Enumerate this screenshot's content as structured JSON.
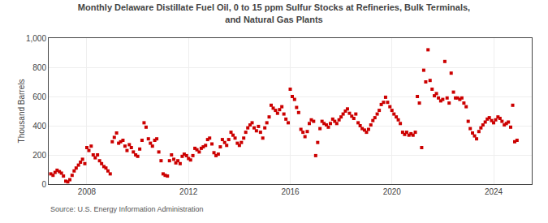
{
  "chart_data": {
    "type": "scatter",
    "title": "Monthly Delaware Distillate Fuel Oil, 0 to 15 ppm Sulfur Stocks at Refineries, Bulk Terminals,\nand Natural Gas Plants",
    "ylabel": "Thousand Barrels",
    "annotations": [
      "Source: U.S. Energy Information Administration"
    ],
    "color": "#cc0000",
    "marker": "square",
    "grid": true,
    "xlim": [
      2006.5,
      2025.5
    ],
    "xticks": [
      2008,
      2012,
      2016,
      2020,
      2024
    ],
    "ylim": [
      0,
      1000
    ],
    "yticks": [
      0,
      200,
      400,
      600,
      800,
      {
        "value": 1000,
        "label": "1,000"
      }
    ],
    "x": [
      2006.58,
      2006.67,
      2006.75,
      2006.83,
      2006.92,
      2007.0,
      2007.08,
      2007.17,
      2007.25,
      2007.33,
      2007.42,
      2007.5,
      2007.58,
      2007.67,
      2007.75,
      2007.83,
      2007.92,
      2008.0,
      2008.08,
      2008.17,
      2008.25,
      2008.33,
      2008.42,
      2008.5,
      2008.58,
      2008.67,
      2008.75,
      2008.83,
      2008.92,
      2009.0,
      2009.08,
      2009.17,
      2009.25,
      2009.33,
      2009.42,
      2009.5,
      2009.58,
      2009.67,
      2009.75,
      2009.83,
      2009.92,
      2010.0,
      2010.08,
      2010.17,
      2010.25,
      2010.33,
      2010.42,
      2010.5,
      2010.58,
      2010.67,
      2010.75,
      2010.83,
      2010.92,
      2011.0,
      2011.08,
      2011.17,
      2011.25,
      2011.33,
      2011.42,
      2011.5,
      2011.58,
      2011.67,
      2011.75,
      2011.83,
      2011.92,
      2012.0,
      2012.08,
      2012.17,
      2012.25,
      2012.33,
      2012.42,
      2012.5,
      2012.58,
      2012.67,
      2012.75,
      2012.83,
      2012.92,
      2013.0,
      2013.08,
      2013.17,
      2013.25,
      2013.33,
      2013.42,
      2013.5,
      2013.58,
      2013.67,
      2013.75,
      2013.83,
      2013.92,
      2014.0,
      2014.08,
      2014.17,
      2014.25,
      2014.33,
      2014.42,
      2014.5,
      2014.58,
      2014.67,
      2014.75,
      2014.83,
      2014.92,
      2015.0,
      2015.08,
      2015.17,
      2015.25,
      2015.33,
      2015.42,
      2015.5,
      2015.58,
      2015.67,
      2015.75,
      2015.83,
      2015.92,
      2016.0,
      2016.08,
      2016.17,
      2016.25,
      2016.33,
      2016.42,
      2016.5,
      2016.58,
      2016.67,
      2016.75,
      2016.83,
      2016.92,
      2017.0,
      2017.08,
      2017.17,
      2017.25,
      2017.33,
      2017.42,
      2017.5,
      2017.58,
      2017.67,
      2017.75,
      2017.83,
      2017.92,
      2018.0,
      2018.08,
      2018.17,
      2018.25,
      2018.33,
      2018.42,
      2018.5,
      2018.58,
      2018.67,
      2018.75,
      2018.83,
      2018.92,
      2019.0,
      2019.08,
      2019.17,
      2019.25,
      2019.33,
      2019.42,
      2019.5,
      2019.58,
      2019.67,
      2019.75,
      2019.83,
      2019.92,
      2020.0,
      2020.08,
      2020.17,
      2020.25,
      2020.33,
      2020.42,
      2020.5,
      2020.58,
      2020.67,
      2020.75,
      2020.83,
      2020.92,
      2021.0,
      2021.08,
      2021.17,
      2021.25,
      2021.33,
      2021.42,
      2021.5,
      2021.58,
      2021.67,
      2021.75,
      2021.83,
      2021.92,
      2022.0,
      2022.08,
      2022.17,
      2022.25,
      2022.33,
      2022.42,
      2022.5,
      2022.58,
      2022.67,
      2022.75,
      2022.83,
      2022.92,
      2023.0,
      2023.08,
      2023.17,
      2023.25,
      2023.33,
      2023.42,
      2023.5,
      2023.58,
      2023.67,
      2023.75,
      2023.83,
      2023.92,
      2024.0,
      2024.08,
      2024.17,
      2024.25,
      2024.33,
      2024.42,
      2024.5,
      2024.58,
      2024.67,
      2024.75,
      2024.83,
      2024.92
    ],
    "values": [
      70,
      60,
      80,
      95,
      85,
      75,
      55,
      20,
      15,
      30,
      60,
      90,
      110,
      130,
      150,
      170,
      140,
      250,
      230,
      260,
      200,
      180,
      200,
      160,
      140,
      120,
      110,
      90,
      70,
      290,
      320,
      350,
      280,
      290,
      300,
      260,
      230,
      270,
      250,
      220,
      200,
      190,
      240,
      300,
      420,
      390,
      310,
      280,
      260,
      300,
      310,
      220,
      160,
      70,
      60,
      55,
      160,
      200,
      170,
      145,
      160,
      140,
      190,
      205,
      195,
      175,
      165,
      195,
      245,
      235,
      220,
      245,
      255,
      265,
      305,
      315,
      275,
      215,
      195,
      205,
      255,
      305,
      285,
      265,
      305,
      355,
      335,
      315,
      280,
      265,
      285,
      315,
      355,
      385,
      405,
      420,
      385,
      365,
      395,
      355,
      315,
      385,
      420,
      460,
      540,
      520,
      505,
      485,
      510,
      530,
      480,
      445,
      420,
      650,
      600,
      580,
      525,
      490,
      375,
      355,
      325,
      360,
      415,
      440,
      430,
      195,
      285,
      380,
      430,
      415,
      405,
      390,
      415,
      445,
      430,
      415,
      440,
      460,
      480,
      500,
      515,
      485,
      465,
      450,
      480,
      420,
      400,
      380,
      370,
      355,
      375,
      405,
      435,
      455,
      480,
      505,
      545,
      560,
      595,
      560,
      530,
      505,
      480,
      460,
      440,
      415,
      355,
      340,
      355,
      335,
      345,
      335,
      355,
      600,
      555,
      250,
      780,
      700,
      920,
      710,
      650,
      605,
      620,
      590,
      570,
      580,
      840,
      590,
      555,
      760,
      630,
      590,
      590,
      580,
      590,
      555,
      530,
      430,
      380,
      350,
      330,
      310,
      360,
      385,
      405,
      425,
      445,
      455,
      435,
      420,
      440,
      460,
      450,
      430,
      405,
      415,
      425,
      390,
      540,
      290,
      300
    ]
  }
}
